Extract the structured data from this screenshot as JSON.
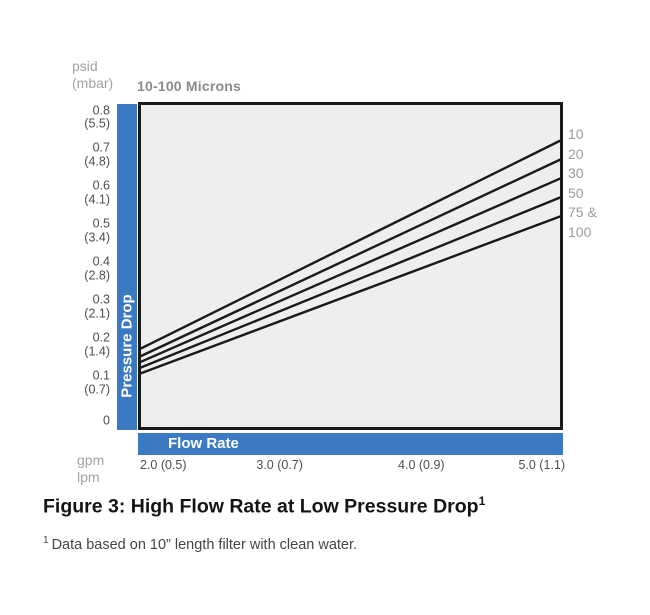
{
  "chart": {
    "title": "10-100 Microns",
    "y_axis": {
      "unit_top": "psid",
      "unit_bottom": "(mbar)",
      "bar_label": "Pressure Drop",
      "ticks": [
        {
          "value": 0.8,
          "label": "0.8",
          "sub": "(5.5)"
        },
        {
          "value": 0.7,
          "label": "0.7",
          "sub": "(4.8)"
        },
        {
          "value": 0.6,
          "label": "0.6",
          "sub": "(4.1)"
        },
        {
          "value": 0.5,
          "label": "0.5",
          "sub": "(3.4)"
        },
        {
          "value": 0.4,
          "label": "0.4",
          "sub": "(2.8)"
        },
        {
          "value": 0.3,
          "label": "0.3",
          "sub": "(2.1)"
        },
        {
          "value": 0.2,
          "label": "0.2",
          "sub": "(1.4)"
        },
        {
          "value": 0.1,
          "label": "0.1",
          "sub": "(0.7)"
        },
        {
          "value": 0,
          "label": "0",
          "sub": ""
        }
      ]
    },
    "x_axis": {
      "bar_label": "Flow Rate",
      "unit_top": "gpm",
      "unit_bottom": "lpm",
      "ticks": [
        {
          "value": 2.0,
          "label": "2.0 (0.5)"
        },
        {
          "value": 3.0,
          "label": "3.0 (0.7)"
        },
        {
          "value": 4.0,
          "label": "4.0 (0.9)"
        },
        {
          "value": 5.0,
          "label": "5.0 (1.1)"
        }
      ]
    },
    "line_labels": [
      "10",
      "20",
      "30",
      "50",
      "75 &",
      "100"
    ],
    "colors": {
      "accent_blue": "#3b79c2",
      "plot_bg": "#eeeeee",
      "line": "#1a1a1a",
      "tick_text": "#4f4f4f",
      "muted_text": "#a2a2a2"
    }
  },
  "chart_data": {
    "type": "line",
    "title": "10-100 Microns",
    "xlabel": "Flow Rate",
    "ylabel": "Pressure Drop",
    "x_units": "gpm (lpm)",
    "y_units": "psid (mbar)",
    "x": [
      2.0,
      5.0
    ],
    "xlim": [
      2.0,
      5.0
    ],
    "ylim": [
      0,
      0.84
    ],
    "x_ticks_gpm": [
      2.0,
      3.0,
      4.0,
      5.0
    ],
    "x_ticks_lpm": [
      0.5,
      0.7,
      0.9,
      1.1
    ],
    "y_ticks_psid": [
      0,
      0.1,
      0.2,
      0.3,
      0.4,
      0.5,
      0.6,
      0.7,
      0.8
    ],
    "y_ticks_mbar": [
      0,
      0.7,
      1.4,
      2.1,
      2.8,
      3.4,
      4.1,
      4.8,
      5.5
    ],
    "grid": false,
    "legend_position": "right",
    "series": [
      {
        "name": "10 micron",
        "values": [
          0.19,
          0.74
        ]
      },
      {
        "name": "20 micron",
        "values": [
          0.17,
          0.69
        ]
      },
      {
        "name": "30 micron",
        "values": [
          0.155,
          0.64
        ]
      },
      {
        "name": "50 micron",
        "values": [
          0.14,
          0.59
        ]
      },
      {
        "name": "75 & 100 micron",
        "values": [
          0.125,
          0.54
        ]
      }
    ]
  },
  "caption": {
    "text": "Figure 3: High Flow Rate at Low Pressure Drop",
    "sup": "1"
  },
  "footnote": {
    "sup": "1",
    "text": "Data based on 10” length filter with clean water."
  }
}
